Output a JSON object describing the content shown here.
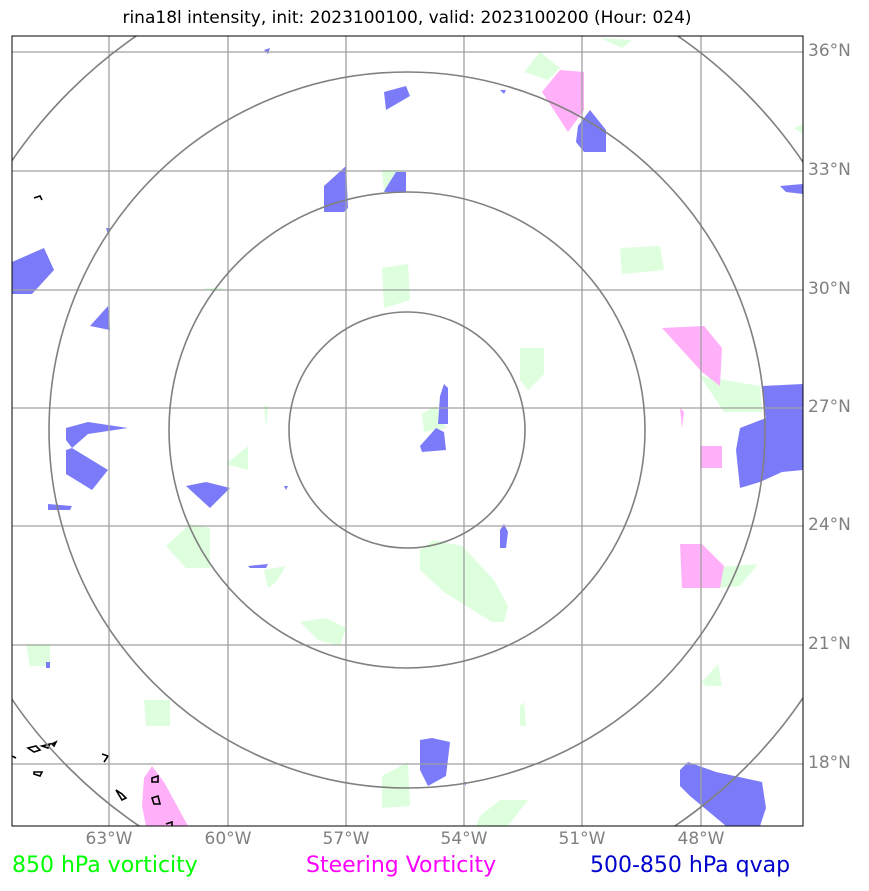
{
  "title": "rina18l intensity, init: 2023100100, valid: 2023100200 (Hour: 024)",
  "lat_labels": [
    "36°N",
    "33°N",
    "30°N",
    "27°N",
    "24°N",
    "21°N",
    "18°N"
  ],
  "lon_labels": [
    "63°W",
    "60°W",
    "57°W",
    "54°W",
    "51°W",
    "48°W"
  ],
  "legend": [
    {
      "label": "850 hPa vorticity",
      "color": "#00ff00"
    },
    {
      "label": "Steering Vorticity",
      "color": "#ff00ff"
    },
    {
      "label": "500-850 hPa qvap",
      "color": "#0000cc"
    }
  ],
  "colors": {
    "vorticity_fill": "#ddffdd",
    "steering_fill": "#ffb0f8",
    "qvap_fill": "#7b7bfa",
    "gridline": "#a0a0a0",
    "range_ring": "#808080",
    "coastline": "#000000"
  }
}
